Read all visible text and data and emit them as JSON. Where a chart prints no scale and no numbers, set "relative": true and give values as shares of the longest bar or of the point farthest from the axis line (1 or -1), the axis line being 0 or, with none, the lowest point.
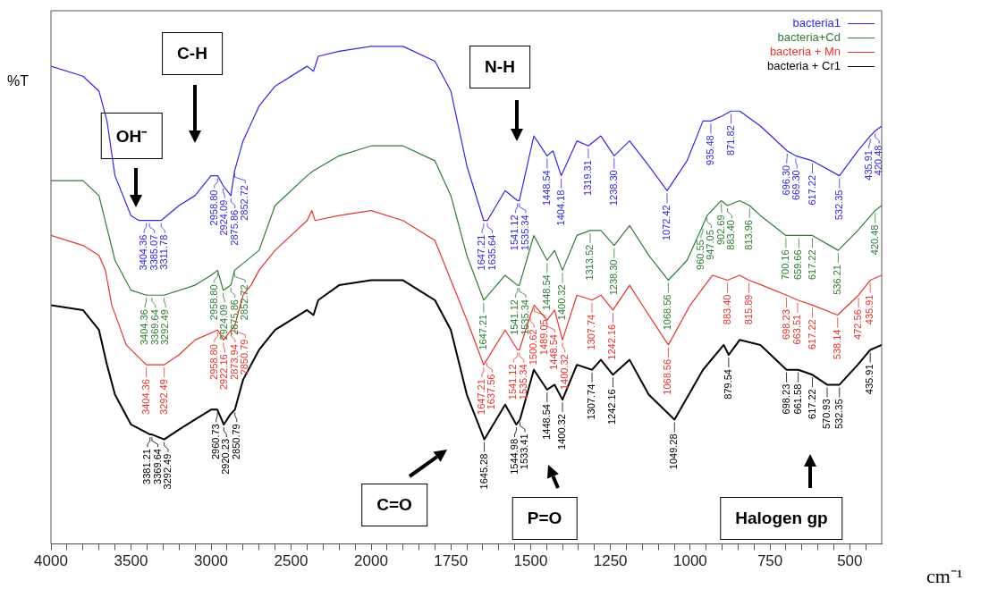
{
  "chart_data": [
    {
      "type": "line",
      "relative": true,
      "ylabel": "%T",
      "xlim": [
        4000,
        2000
      ],
      "xticks": [
        4000,
        {
          "value": 3900,
          "label": null
        },
        {
          "value": 3800,
          "label": null
        },
        {
          "value": 3700,
          "label": null
        },
        {
          "value": 3600,
          "label": null
        },
        3500,
        {
          "value": 3400,
          "label": null
        },
        {
          "value": 3300,
          "label": null
        },
        {
          "value": 3200,
          "label": null
        },
        {
          "value": 3100,
          "label": null
        },
        3000,
        {
          "value": 2900,
          "label": null
        },
        {
          "value": 2800,
          "label": null
        },
        {
          "value": 2700,
          "label": null
        },
        {
          "value": 2600,
          "label": null
        },
        2500,
        {
          "value": 2400,
          "label": null
        },
        {
          "value": 2300,
          "label": null
        },
        {
          "value": 2200,
          "label": null
        },
        {
          "value": 2100,
          "label": null
        },
        2000
      ],
      "series": [
        {
          "color": "#2b2bdf",
          "x": [
            4000,
            3800,
            3700,
            3650,
            3600,
            3500,
            3450,
            3404.36,
            3385.07,
            3311.78,
            3200,
            3100,
            3000,
            2958.8,
            2924.09,
            2875.86,
            2852.72,
            2800,
            2700,
            2600,
            2400,
            2360,
            2330,
            2200,
            2000
          ],
          "values": [
            0.96,
            0.94,
            0.91,
            0.85,
            0.74,
            0.66,
            0.65,
            0.65,
            0.65,
            0.65,
            0.68,
            0.7,
            0.74,
            0.74,
            0.72,
            0.7,
            0.75,
            0.81,
            0.88,
            0.92,
            0.96,
            0.95,
            0.98,
            0.99,
            1.0
          ]
        },
        {
          "color": "#2e7d32",
          "x": [
            4000,
            3800,
            3700,
            3600,
            3500,
            3404.36,
            3369.64,
            3292.49,
            3100,
            3000,
            2958.8,
            2924.09,
            2875.86,
            2852.72,
            2700,
            2600,
            2400,
            2360,
            2200,
            2000
          ],
          "values": [
            0.73,
            0.73,
            0.7,
            0.57,
            0.51,
            0.5,
            0.5,
            0.5,
            0.52,
            0.54,
            0.55,
            0.51,
            0.52,
            0.55,
            0.59,
            0.68,
            0.74,
            0.75,
            0.78,
            0.8
          ]
        },
        {
          "color": "#e8332a",
          "x": [
            4000,
            3800,
            3700,
            3660,
            3620,
            3530,
            3404.36,
            3292.49,
            3200,
            3100,
            2958.8,
            2922.16,
            2873.94,
            2850.79,
            2800,
            2750,
            2700,
            2600,
            2400,
            2370,
            2350,
            2200,
            2000
          ],
          "values": [
            0.62,
            0.6,
            0.58,
            0.55,
            0.48,
            0.4,
            0.36,
            0.36,
            0.38,
            0.41,
            0.43,
            0.41,
            0.43,
            0.44,
            0.5,
            0.52,
            0.55,
            0.59,
            0.65,
            0.67,
            0.65,
            0.66,
            0.67
          ]
        },
        {
          "color": "#000000",
          "x": [
            4000,
            3800,
            3700,
            3650,
            3600,
            3500,
            3381.21,
            3369.64,
            3292.49,
            3200,
            3100,
            3000,
            2960.73,
            2920.23,
            2880,
            2850.79,
            2800,
            2700,
            2600,
            2400,
            2360,
            2330,
            2200,
            2000
          ],
          "values": [
            0.48,
            0.47,
            0.43,
            0.36,
            0.3,
            0.24,
            0.22,
            0.22,
            0.21,
            0.23,
            0.25,
            0.27,
            0.27,
            0.24,
            0.26,
            0.27,
            0.33,
            0.39,
            0.43,
            0.47,
            0.46,
            0.49,
            0.52,
            0.53
          ]
        }
      ],
      "annotations": [
        "OH⁻",
        "C-H",
        {
          "text": "3404.36",
          "x": 3404.36,
          "y": 0.65
        },
        {
          "text": "3385.07",
          "x": 3385.07,
          "y": 0.65
        },
        {
          "text": "3311.78",
          "x": 3311.78,
          "y": 0.65
        },
        {
          "text": "2958.80",
          "x": 2958.8,
          "y": 0.74
        },
        {
          "text": "2924.09",
          "x": 2924.09,
          "y": 0.72
        },
        {
          "text": "2875.86",
          "x": 2875.86,
          "y": 0.7
        },
        {
          "text": "2852.72",
          "x": 2852.72,
          "y": 0.75
        },
        {
          "text": "3404.36",
          "x": 3404.36,
          "y": 0.5
        },
        {
          "text": "3369.64",
          "x": 3369.64,
          "y": 0.5
        },
        {
          "text": "3292.49",
          "x": 3292.49,
          "y": 0.5
        },
        {
          "text": "2958.80",
          "x": 2958.8,
          "y": 0.55
        },
        {
          "text": "2924.09",
          "x": 2924.09,
          "y": 0.51
        },
        {
          "text": "2875.86",
          "x": 2875.86,
          "y": 0.52
        },
        {
          "text": "2852.72",
          "x": 2852.72,
          "y": 0.55
        },
        {
          "text": "3404.36",
          "x": 3404.36,
          "y": 0.36
        },
        {
          "text": "3292.49",
          "x": 3292.49,
          "y": 0.36
        },
        {
          "text": "2958.80",
          "x": 2958.8,
          "y": 0.43
        },
        {
          "text": "2922.16",
          "x": 2922.16,
          "y": 0.41
        },
        {
          "text": "2873.94",
          "x": 2873.94,
          "y": 0.43
        },
        {
          "text": "2850.79",
          "x": 2850.79,
          "y": 0.44
        },
        {
          "text": "3381.21",
          "x": 3381.21,
          "y": 0.22
        },
        {
          "text": "3369.64",
          "x": 3369.64,
          "y": 0.22
        },
        {
          "text": "3292.49",
          "x": 3292.49,
          "y": 0.21
        },
        {
          "text": "2960.73",
          "x": 2960.73,
          "y": 0.27
        },
        {
          "text": "2920.23",
          "x": 2920.23,
          "y": 0.24
        },
        {
          "text": "2850.79",
          "x": 2850.79,
          "y": 0.27
        }
      ]
    },
    {
      "type": "line",
      "relative": true,
      "xlabel": "cm⁻¹",
      "legend": "top right",
      "xlim": [
        2000,
        400
      ],
      "xticks": [
        {
          "value": 1950,
          "label": null
        },
        {
          "value": 1900,
          "label": null
        },
        {
          "value": 1850,
          "label": null
        },
        {
          "value": 1800,
          "label": null
        },
        1750,
        {
          "value": 1700,
          "label": null
        },
        {
          "value": 1650,
          "label": null
        },
        {
          "value": 1600,
          "label": null
        },
        {
          "value": 1550,
          "label": null
        },
        1500,
        {
          "value": 1450,
          "label": null
        },
        {
          "value": 1400,
          "label": null
        },
        {
          "value": 1350,
          "label": null
        },
        {
          "value": 1300,
          "label": null
        },
        1250,
        {
          "value": 1200,
          "label": null
        },
        {
          "value": 1150,
          "label": null
        },
        {
          "value": 1100,
          "label": null
        },
        {
          "value": 1050,
          "label": null
        },
        1000,
        {
          "value": 950,
          "label": null
        },
        {
          "value": 900,
          "label": null
        },
        {
          "value": 850,
          "label": null
        },
        {
          "value": 800,
          "label": null
        },
        750,
        {
          "value": 700,
          "label": null
        },
        {
          "value": 650,
          "label": null
        },
        {
          "value": 600,
          "label": null
        },
        {
          "value": 550,
          "label": null
        },
        500,
        {
          "value": 450,
          "label": null
        }
      ],
      "series": [
        {
          "name": "bacteria1",
          "color": "#2b2bdf",
          "x": [
            2000,
            1900,
            1800,
            1750,
            1700,
            1647.21,
            1635.64,
            1580,
            1541.12,
            1535.34,
            1490,
            1448.54,
            1430,
            1404.18,
            1355,
            1319.31,
            1280,
            1238.3,
            1190,
            1130,
            1072.42,
            1010,
            960,
            935.48,
            900,
            871.82,
            845,
            780,
            696.3,
            669.3,
            617.22,
            532.35,
            475,
            435.91,
            420.48,
            400
          ],
          "values": [
            1.0,
            1.0,
            0.97,
            0.91,
            0.76,
            0.65,
            0.65,
            0.71,
            0.69,
            0.69,
            0.82,
            0.78,
            0.79,
            0.74,
            0.81,
            0.8,
            0.82,
            0.78,
            0.81,
            0.76,
            0.71,
            0.77,
            0.85,
            0.85,
            0.86,
            0.87,
            0.87,
            0.84,
            0.79,
            0.78,
            0.77,
            0.74,
            0.79,
            0.82,
            0.83,
            0.84
          ]
        },
        {
          "name": "bacteria+Cd",
          "color": "#2e7d32",
          "x": [
            2000,
            1900,
            1800,
            1750,
            1700,
            1647.21,
            1580,
            1541.12,
            1535.34,
            1490,
            1448.54,
            1425,
            1400.32,
            1355,
            1313.52,
            1280,
            1238.3,
            1190,
            1130,
            1068.56,
            1010,
            960.55,
            947.05,
            902.69,
            883.4,
            845,
            813.96,
            780,
            700.16,
            659.66,
            617.22,
            536.21,
            475,
            420.48,
            400
          ],
          "values": [
            0.8,
            0.8,
            0.77,
            0.7,
            0.58,
            0.49,
            0.54,
            0.52,
            0.52,
            0.62,
            0.57,
            0.59,
            0.55,
            0.62,
            0.63,
            0.63,
            0.6,
            0.64,
            0.58,
            0.53,
            0.57,
            0.64,
            0.66,
            0.69,
            0.68,
            0.69,
            0.68,
            0.66,
            0.62,
            0.62,
            0.62,
            0.59,
            0.63,
            0.67,
            0.68
          ]
        },
        {
          "name": "bacteria + Mn",
          "color": "#e8332a",
          "x": [
            2000,
            1900,
            1800,
            1750,
            1700,
            1647.21,
            1637.56,
            1580,
            1541.12,
            1535.34,
            1500.62,
            1489.05,
            1448.54,
            1425,
            1400.32,
            1355,
            1307.74,
            1280,
            1242.16,
            1190,
            1130,
            1068.56,
            1000,
            930,
            883.4,
            845,
            815.89,
            775,
            698.23,
            663.51,
            617.22,
            538.14,
            472.56,
            435.91,
            400
          ],
          "values": [
            0.67,
            0.65,
            0.61,
            0.53,
            0.45,
            0.36,
            0.37,
            0.43,
            0.39,
            0.39,
            0.46,
            0.48,
            0.45,
            0.47,
            0.41,
            0.5,
            0.49,
            0.5,
            0.47,
            0.52,
            0.46,
            0.4,
            0.48,
            0.54,
            0.53,
            0.54,
            0.53,
            0.52,
            0.5,
            0.49,
            0.48,
            0.46,
            0.5,
            0.53,
            0.54
          ]
        },
        {
          "name": "bacteria + Cr1",
          "color": "#000000",
          "x": [
            2000,
            1900,
            1800,
            1750,
            1700,
            1645.28,
            1580,
            1544.98,
            1533.41,
            1490,
            1448.54,
            1425,
            1400.32,
            1355,
            1307.74,
            1280,
            1242.16,
            1190,
            1130,
            1049.28,
            960,
            895,
            879.54,
            845,
            780,
            698.23,
            661.58,
            617.22,
            570.93,
            532.35,
            475,
            435.91,
            400
          ],
          "values": [
            0.53,
            0.53,
            0.49,
            0.43,
            0.3,
            0.21,
            0.28,
            0.24,
            0.25,
            0.35,
            0.31,
            0.32,
            0.29,
            0.36,
            0.35,
            0.37,
            0.34,
            0.37,
            0.3,
            0.25,
            0.35,
            0.4,
            0.38,
            0.41,
            0.4,
            0.35,
            0.35,
            0.34,
            0.32,
            0.32,
            0.36,
            0.39,
            0.4
          ]
        }
      ],
      "annotations": [
        "N-H",
        "C=O",
        "P=O",
        "Halogen gp",
        {
          "text": "1647.21",
          "x": 1647.21,
          "y": 0.65
        },
        {
          "text": "1635.64",
          "x": 1635.64,
          "y": 0.65
        },
        {
          "text": "1541.12",
          "x": 1541.12,
          "y": 0.69
        },
        {
          "text": "1535.34",
          "x": 1535.34,
          "y": 0.69
        },
        {
          "text": "1448.54",
          "x": 1448.54,
          "y": 0.78
        },
        {
          "text": "1404.18",
          "x": 1404.18,
          "y": 0.74
        },
        {
          "text": "1319.31",
          "x": 1319.31,
          "y": 0.8
        },
        {
          "text": "1238.30",
          "x": 1238.3,
          "y": 0.78
        },
        {
          "text": "1072.42",
          "x": 1072.42,
          "y": 0.71
        },
        {
          "text": "935.48",
          "x": 935.48,
          "y": 0.85
        },
        {
          "text": "871.82",
          "x": 871.82,
          "y": 0.87
        },
        {
          "text": "696.30",
          "x": 696.3,
          "y": 0.79
        },
        {
          "text": "669.30",
          "x": 669.3,
          "y": 0.78
        },
        {
          "text": "617.22",
          "x": 617.22,
          "y": 0.77
        },
        {
          "text": "532.35",
          "x": 532.35,
          "y": 0.74
        },
        {
          "text": "435.91",
          "x": 435.91,
          "y": 0.82
        },
        {
          "text": "420.48",
          "x": 420.48,
          "y": 0.83
        },
        {
          "text": "1647.21",
          "x": 1647.21,
          "y": 0.49
        },
        {
          "text": "1541.12",
          "x": 1541.12,
          "y": 0.52
        },
        {
          "text": "1535.34",
          "x": 1535.34,
          "y": 0.52
        },
        {
          "text": "1448.54",
          "x": 1448.54,
          "y": 0.57
        },
        {
          "text": "1400.32",
          "x": 1400.32,
          "y": 0.55
        },
        {
          "text": "1313.52",
          "x": 1313.52,
          "y": 0.63
        },
        {
          "text": "1238.30",
          "x": 1238.3,
          "y": 0.6
        },
        {
          "text": "1068.56",
          "x": 1068.56,
          "y": 0.53
        },
        {
          "text": "960.55",
          "x": 960.55,
          "y": 0.64
        },
        {
          "text": "947.05",
          "x": 947.05,
          "y": 0.66
        },
        {
          "text": "902.69",
          "x": 902.69,
          "y": 0.69
        },
        {
          "text": "883.40",
          "x": 883.4,
          "y": 0.68
        },
        {
          "text": "813.96",
          "x": 813.96,
          "y": 0.68
        },
        {
          "text": "700.16",
          "x": 700.16,
          "y": 0.62
        },
        {
          "text": "659.66",
          "x": 659.66,
          "y": 0.62
        },
        {
          "text": "617.22",
          "x": 617.22,
          "y": 0.62
        },
        {
          "text": "536.21",
          "x": 536.21,
          "y": 0.59
        },
        {
          "text": "420.48",
          "x": 420.48,
          "y": 0.67
        },
        {
          "text": "1647.21",
          "x": 1647.21,
          "y": 0.36
        },
        {
          "text": "1637.56",
          "x": 1637.56,
          "y": 0.37
        },
        {
          "text": "1541.12",
          "x": 1541.12,
          "y": 0.39
        },
        {
          "text": "1535.34",
          "x": 1535.34,
          "y": 0.39
        },
        {
          "text": "1500.62",
          "x": 1500.62,
          "y": 0.46
        },
        {
          "text": "1489.05",
          "x": 1489.05,
          "y": 0.48
        },
        {
          "text": "1448.54",
          "x": 1448.54,
          "y": 0.45
        },
        {
          "text": "1400.32",
          "x": 1400.32,
          "y": 0.41
        },
        {
          "text": "1307.74",
          "x": 1307.74,
          "y": 0.49
        },
        {
          "text": "1242.16",
          "x": 1242.16,
          "y": 0.47
        },
        {
          "text": "1068.56",
          "x": 1068.56,
          "y": 0.4
        },
        {
          "text": "883.40",
          "x": 883.4,
          "y": 0.53
        },
        {
          "text": "815.89",
          "x": 815.89,
          "y": 0.53
        },
        {
          "text": "698.23",
          "x": 698.23,
          "y": 0.5
        },
        {
          "text": "663.51",
          "x": 663.51,
          "y": 0.49
        },
        {
          "text": "617.22",
          "x": 617.22,
          "y": 0.48
        },
        {
          "text": "538.14",
          "x": 538.14,
          "y": 0.46
        },
        {
          "text": "472.56",
          "x": 472.56,
          "y": 0.5
        },
        {
          "text": "435.91",
          "x": 435.91,
          "y": 0.53
        },
        {
          "text": "1645.28",
          "x": 1645.28,
          "y": 0.21
        },
        {
          "text": "1544.98",
          "x": 1544.98,
          "y": 0.24
        },
        {
          "text": "1533.41",
          "x": 1533.41,
          "y": 0.25
        },
        {
          "text": "1448.54",
          "x": 1448.54,
          "y": 0.31
        },
        {
          "text": "1400.32",
          "x": 1400.32,
          "y": 0.29
        },
        {
          "text": "1307.74",
          "x": 1307.74,
          "y": 0.35
        },
        {
          "text": "1242.16",
          "x": 1242.16,
          "y": 0.34
        },
        {
          "text": "1049.28",
          "x": 1049.28,
          "y": 0.25
        },
        {
          "text": "879.54",
          "x": 879.54,
          "y": 0.38
        },
        {
          "text": "698.23",
          "x": 698.23,
          "y": 0.35
        },
        {
          "text": "661.58",
          "x": 661.58,
          "y": 0.35
        },
        {
          "text": "617.22",
          "x": 617.22,
          "y": 0.34
        },
        {
          "text": "570.93",
          "x": 570.93,
          "y": 0.32
        },
        {
          "text": "532.35",
          "x": 532.35,
          "y": 0.32
        },
        {
          "text": "435.91",
          "x": 435.91,
          "y": 0.39
        }
      ]
    }
  ]
}
